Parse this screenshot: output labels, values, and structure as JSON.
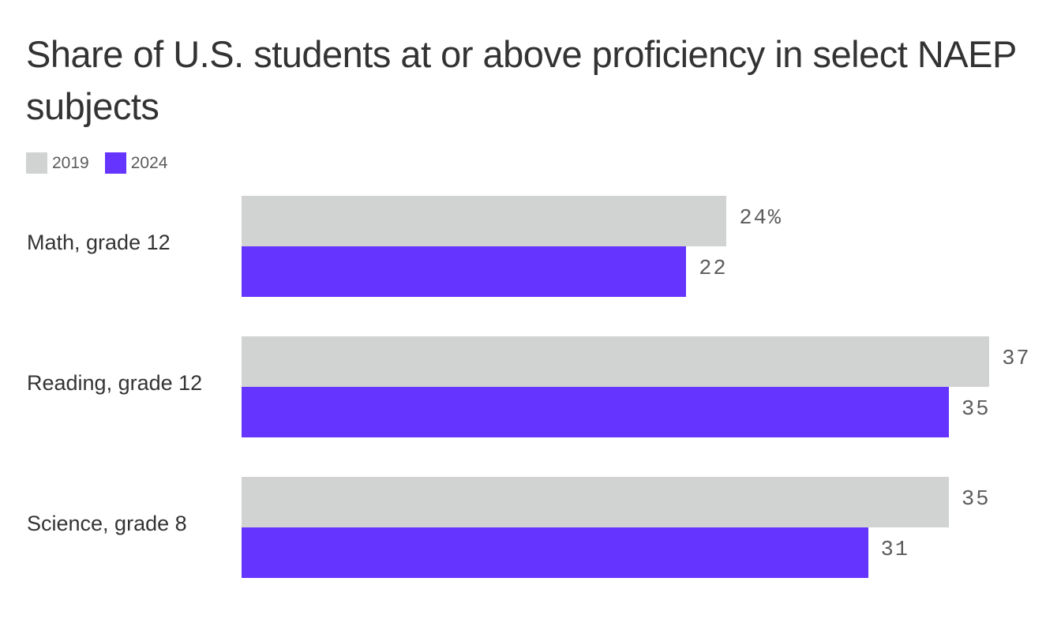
{
  "title": "Share of U.S. students at or above proficiency in select NAEP subjects",
  "legend": [
    {
      "label": "2019",
      "color": "#d1d3d2"
    },
    {
      "label": "2024",
      "color": "#6535ff"
    }
  ],
  "groups": [
    {
      "label": "Math, grade 12",
      "v2019": 24,
      "v2024": 22,
      "l2019": "24%",
      "l2024": "22"
    },
    {
      "label": "Reading, grade 12",
      "v2019": 37,
      "v2024": 35,
      "l2019": "37",
      "l2024": "35"
    },
    {
      "label": "Science, grade 8",
      "v2019": 35,
      "v2024": 31,
      "l2019": "35",
      "l2024": "31"
    }
  ],
  "chart_data": {
    "type": "bar",
    "orientation": "horizontal",
    "title": "Share of U.S. students at or above proficiency in select NAEP subjects",
    "categories": [
      "Math, grade 12",
      "Reading, grade 12",
      "Science, grade 8"
    ],
    "series": [
      {
        "name": "2019",
        "color": "#d1d3d2",
        "values": [
          24,
          37,
          35
        ]
      },
      {
        "name": "2024",
        "color": "#6535ff",
        "values": [
          22,
          35,
          31
        ]
      }
    ],
    "unit": "%",
    "xlabel": "",
    "ylabel": "",
    "grid": false,
    "legend_position": "top-left"
  }
}
